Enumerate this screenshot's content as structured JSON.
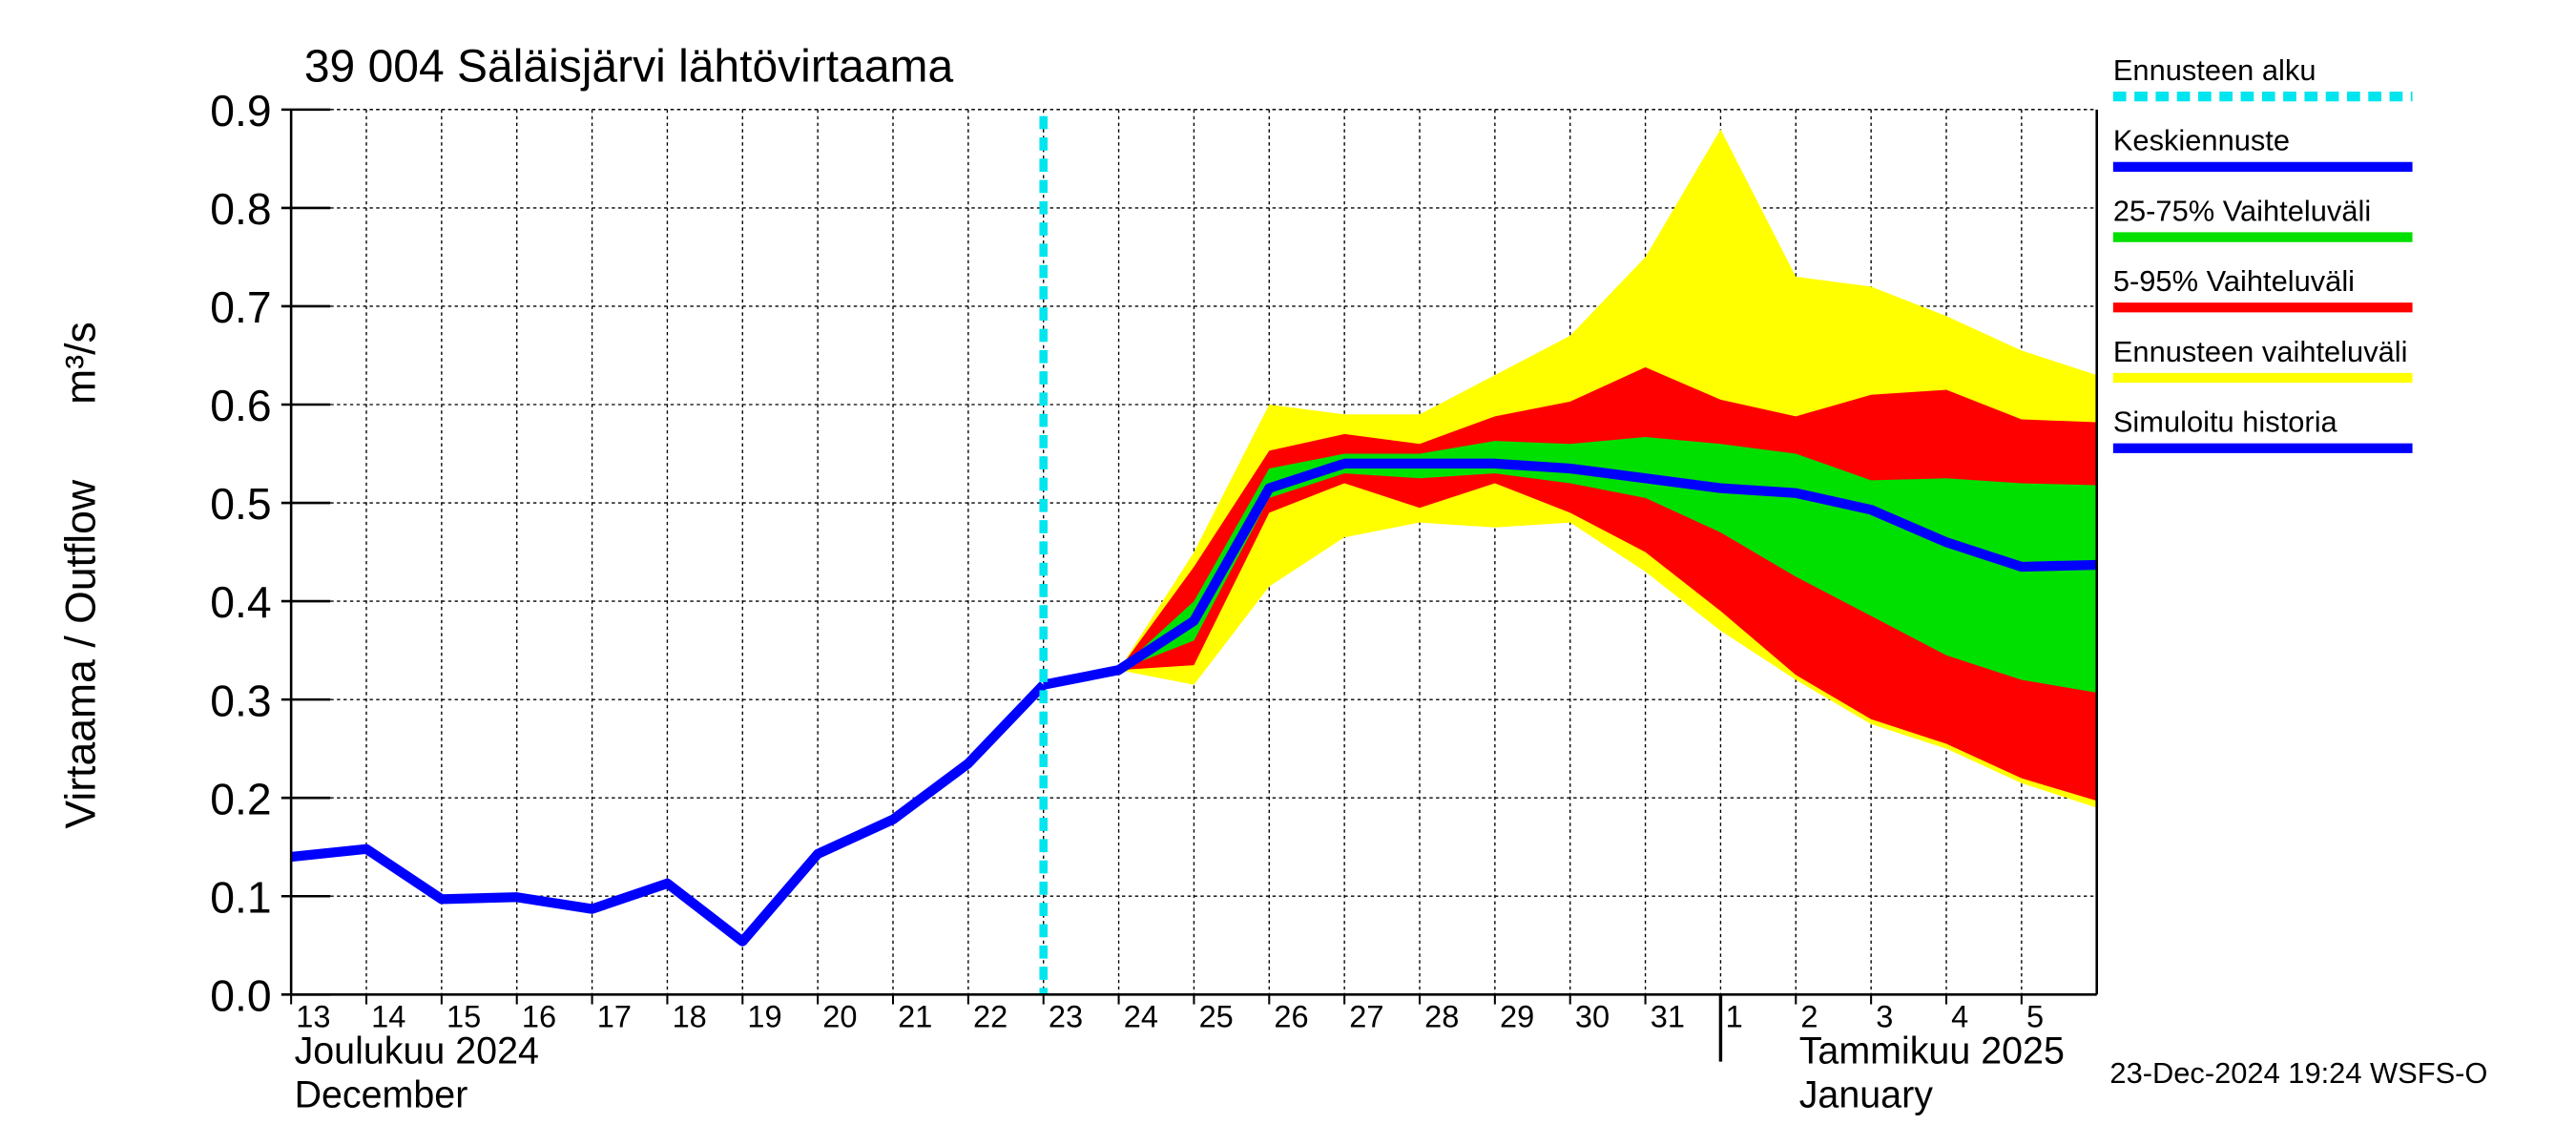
{
  "chart_data": {
    "type": "line",
    "title": "39 004 Säläisjärvi lähtövirtaama",
    "ylabel": "Virtaama / Outflow",
    "yunit": "m³/s",
    "x": [
      "2024-12-13",
      "2024-12-14",
      "2024-12-15",
      "2024-12-16",
      "2024-12-17",
      "2024-12-18",
      "2024-12-19",
      "2024-12-20",
      "2024-12-21",
      "2024-12-22",
      "2024-12-23",
      "2024-12-24",
      "2024-12-25",
      "2024-12-26",
      "2024-12-27",
      "2024-12-28",
      "2024-12-29",
      "2024-12-30",
      "2024-12-31",
      "2025-01-01",
      "2025-01-02",
      "2025-01-03",
      "2025-01-04",
      "2025-01-05",
      "2025-01-06"
    ],
    "xlim": [
      "2024-12-13",
      "2025-01-06"
    ],
    "xticks": [
      {
        "value": "2024-12-13",
        "label": "13"
      },
      {
        "value": "2024-12-14",
        "label": "14"
      },
      {
        "value": "2024-12-15",
        "label": "15"
      },
      {
        "value": "2024-12-16",
        "label": "16"
      },
      {
        "value": "2024-12-17",
        "label": "17"
      },
      {
        "value": "2024-12-18",
        "label": "18"
      },
      {
        "value": "2024-12-19",
        "label": "19"
      },
      {
        "value": "2024-12-20",
        "label": "20"
      },
      {
        "value": "2024-12-21",
        "label": "21"
      },
      {
        "value": "2024-12-22",
        "label": "22"
      },
      {
        "value": "2024-12-23",
        "label": "23"
      },
      {
        "value": "2024-12-24",
        "label": "24"
      },
      {
        "value": "2024-12-25",
        "label": "25"
      },
      {
        "value": "2024-12-26",
        "label": "26"
      },
      {
        "value": "2024-12-27",
        "label": "27"
      },
      {
        "value": "2024-12-28",
        "label": "28"
      },
      {
        "value": "2024-12-29",
        "label": "29"
      },
      {
        "value": "2024-12-30",
        "label": "30"
      },
      {
        "value": "2024-12-31",
        "label": "31"
      },
      {
        "value": "2025-01-01",
        "label": "1"
      },
      {
        "value": "2025-01-02",
        "label": "2"
      },
      {
        "value": "2025-01-03",
        "label": "3"
      },
      {
        "value": "2025-01-04",
        "label": "4"
      },
      {
        "value": "2025-01-05",
        "label": "5"
      }
    ],
    "months": [
      {
        "value": "2024-12-13",
        "label": "Joulukuu  2024",
        "label_en": "December"
      },
      {
        "value": "2025-01-01",
        "label": "Tammikuu  2025",
        "label_en": "January"
      }
    ],
    "ylim": [
      0,
      0.9
    ],
    "yticks": [
      {
        "value": 0,
        "label": "0.0"
      },
      0.1,
      0.2,
      0.3,
      0.4,
      0.5,
      0.6,
      0.7,
      0.8,
      0.9
    ],
    "grid": true,
    "forecast_start": {
      "name": "Ennusteen alku",
      "x": "2024-12-23",
      "color": "#00e5ee"
    },
    "series": [
      {
        "name": "Keskiennuste",
        "color": "#0000ff",
        "kind": "line",
        "values": [
          null,
          null,
          null,
          null,
          null,
          null,
          null,
          null,
          null,
          null,
          0.315,
          0.33,
          0.38,
          0.515,
          0.54,
          0.54,
          0.54,
          0.535,
          0.525,
          0.515,
          0.51,
          0.493,
          0.46,
          0.435,
          0.437
        ]
      },
      {
        "name": "25-75% Vaihteluväli",
        "color": "#00e000",
        "kind": "band",
        "values": [
          null,
          null,
          null,
          null,
          null,
          null,
          null,
          null,
          null,
          null,
          null,
          0.33,
          0.4,
          0.535,
          0.55,
          0.55,
          0.563,
          0.56,
          0.567,
          0.56,
          0.55,
          0.523,
          0.525,
          0.52,
          0.518
        ],
        "lower": [
          null,
          null,
          null,
          null,
          null,
          null,
          null,
          null,
          null,
          null,
          null,
          0.33,
          0.36,
          0.505,
          0.53,
          0.525,
          0.53,
          0.52,
          0.505,
          0.47,
          0.425,
          0.385,
          0.345,
          0.32,
          0.307
        ]
      },
      {
        "name": "5-95% Vaihteluväli",
        "color": "#ff0000",
        "kind": "band",
        "values": [
          null,
          null,
          null,
          null,
          null,
          null,
          null,
          null,
          null,
          null,
          null,
          0.33,
          0.435,
          0.553,
          0.57,
          0.56,
          0.588,
          0.603,
          0.638,
          0.605,
          0.588,
          0.61,
          0.615,
          0.585,
          0.582
        ],
        "lower": [
          null,
          null,
          null,
          null,
          null,
          null,
          null,
          null,
          null,
          null,
          null,
          0.33,
          0.335,
          0.49,
          0.52,
          0.495,
          0.52,
          0.49,
          0.45,
          0.39,
          0.325,
          0.28,
          0.255,
          0.22,
          0.197
        ]
      },
      {
        "name": "Ennusteen vaihteluväli",
        "color": "#ffff00",
        "kind": "band",
        "values": [
          null,
          null,
          null,
          null,
          null,
          null,
          null,
          null,
          null,
          null,
          null,
          0.33,
          0.45,
          0.6,
          0.59,
          0.59,
          0.63,
          0.67,
          0.75,
          0.88,
          0.73,
          0.72,
          0.69,
          0.655,
          0.63
        ],
        "lower": [
          null,
          null,
          null,
          null,
          null,
          null,
          null,
          null,
          null,
          null,
          null,
          0.33,
          0.315,
          0.415,
          0.465,
          0.48,
          0.475,
          0.48,
          0.43,
          0.37,
          0.32,
          0.275,
          0.25,
          0.215,
          0.19
        ]
      },
      {
        "name": "Simuloitu historia",
        "color": "#0000ff",
        "kind": "line",
        "values": [
          0.14,
          0.148,
          0.097,
          0.099,
          0.087,
          0.113,
          0.054,
          0.143,
          0.178,
          0.235,
          0.315,
          null,
          null,
          null,
          null,
          null,
          null,
          null,
          null,
          null,
          null,
          null,
          null,
          null,
          null
        ]
      }
    ],
    "footer": "23-Dec-2024 19:24 WSFS-O"
  }
}
